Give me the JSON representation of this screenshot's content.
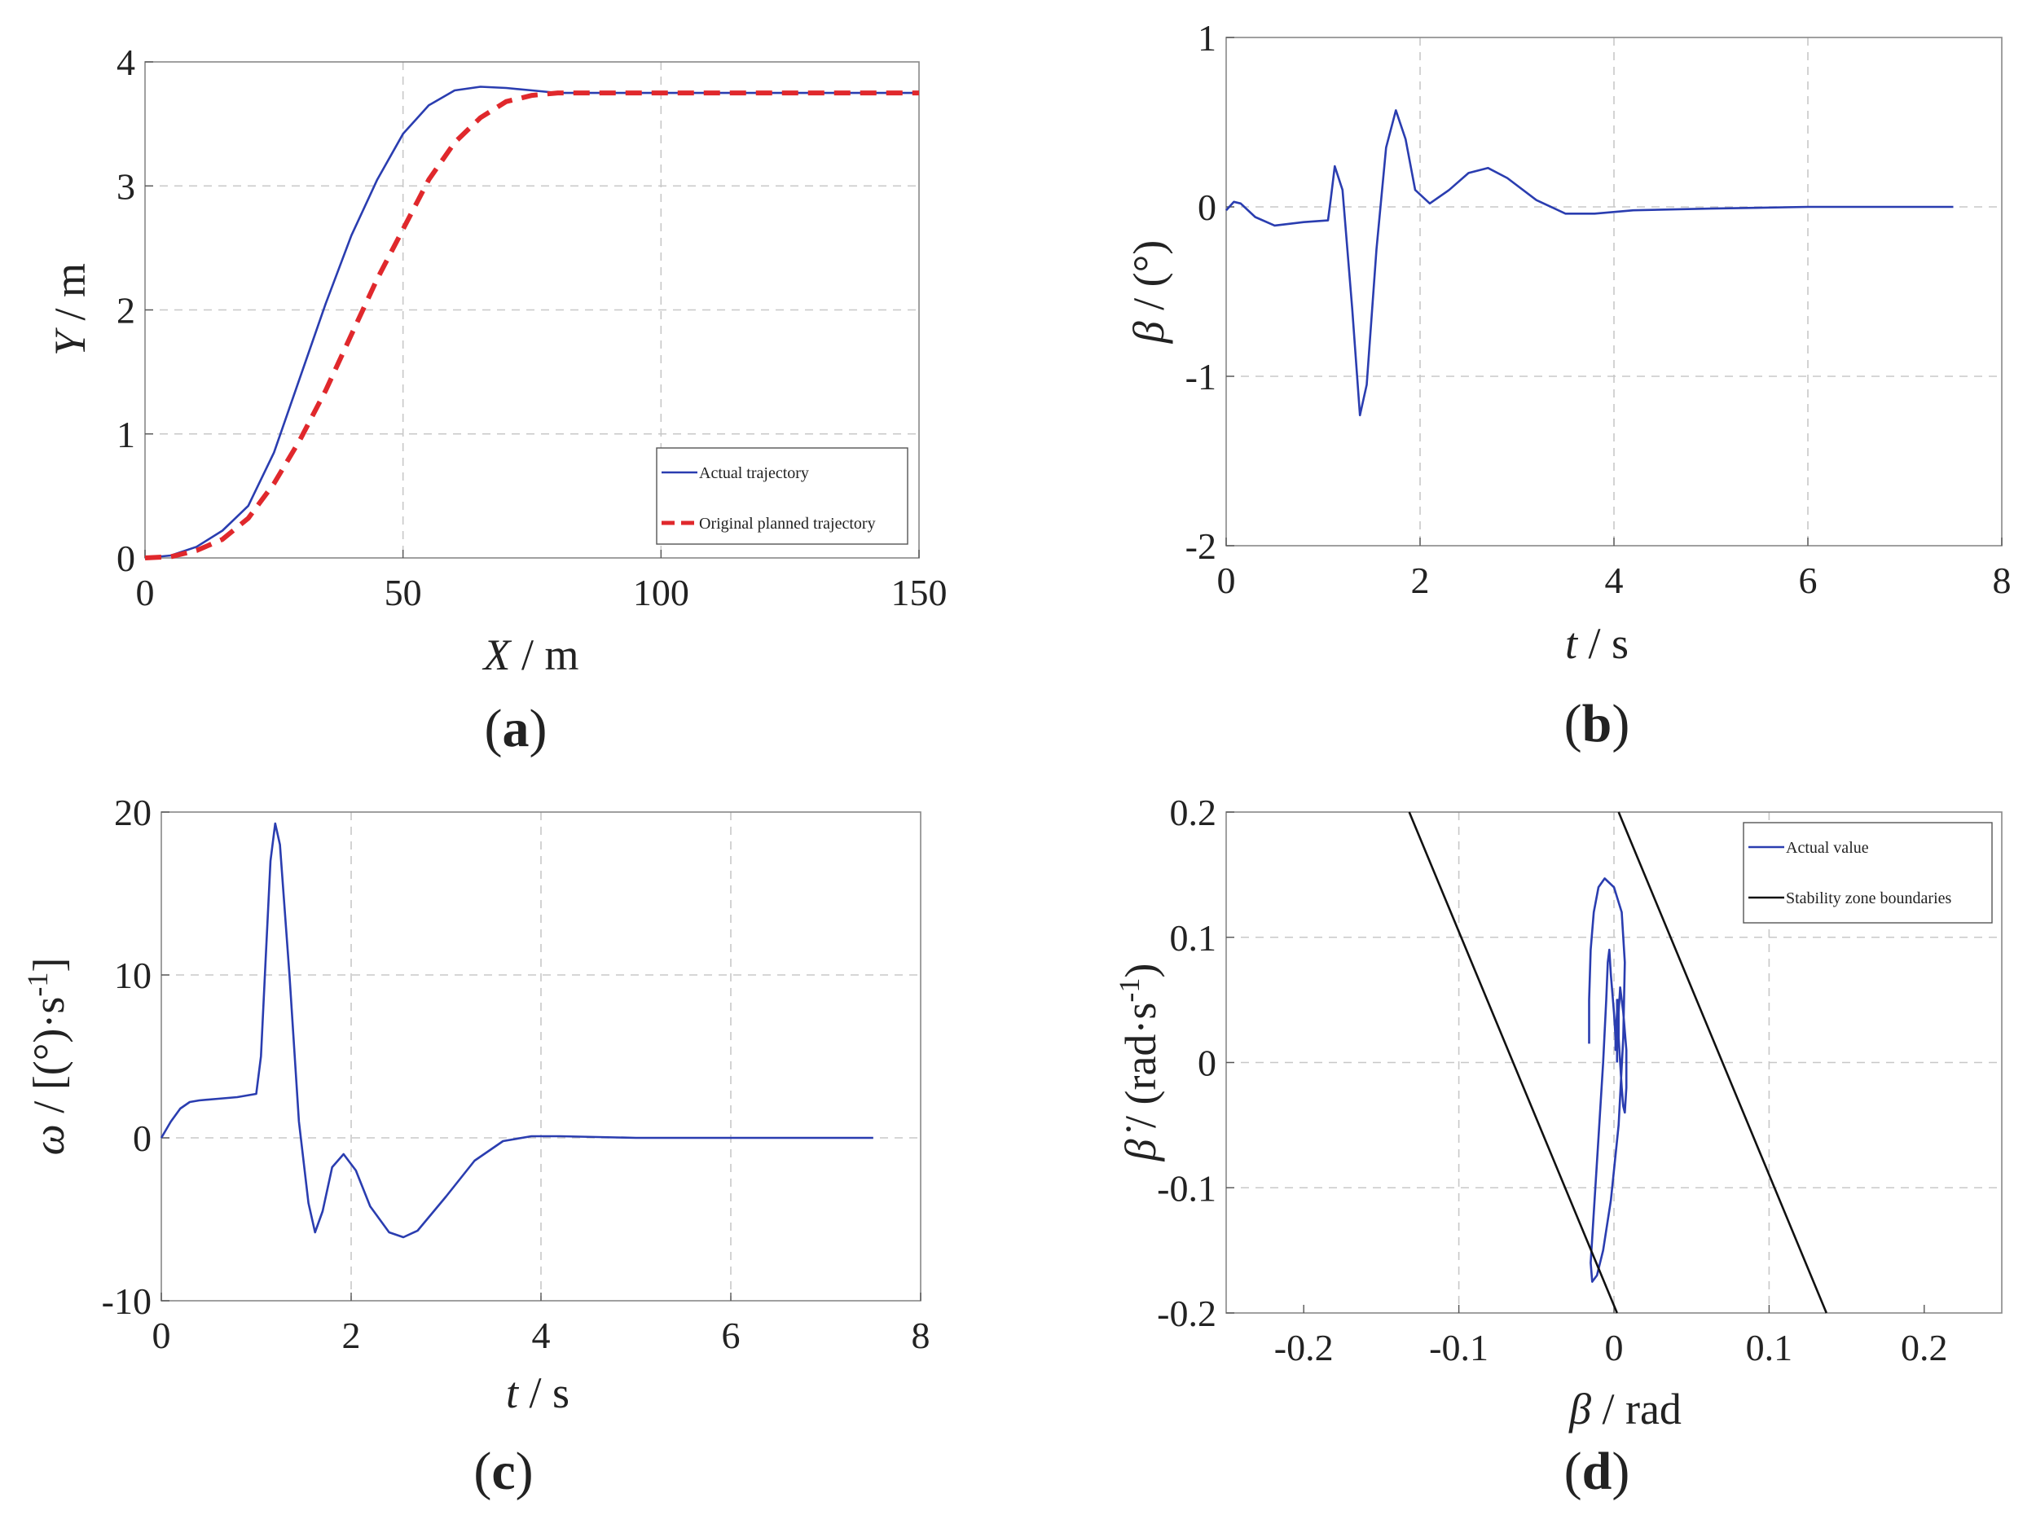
{
  "colors": {
    "blue": "#2a3db0",
    "red": "#e0282c",
    "black": "#111111"
  },
  "chart_data": [
    {
      "type": "line",
      "panel_label": "(a)",
      "xlabel": {
        "italic": "X",
        "rest": " / m"
      },
      "ylabel": {
        "italic": "Y",
        "rest": " / m"
      },
      "xlim": [
        0,
        150
      ],
      "ylim": [
        0,
        4
      ],
      "xticks": [
        0,
        50,
        100,
        150
      ],
      "xtick_labels": [
        "0",
        "50",
        "100",
        "150"
      ],
      "yticks": [
        0,
        1,
        2,
        3,
        4
      ],
      "ytick_labels": [
        "0",
        "1",
        "2",
        "3",
        "4"
      ],
      "grid": true,
      "legend": {
        "placement": "bottom-right"
      },
      "series": [
        {
          "name": "Actual trajectory",
          "style": "solid",
          "color": "blue",
          "x": [
            0,
            5,
            10,
            15,
            20,
            25,
            30,
            35,
            40,
            45,
            50,
            55,
            60,
            65,
            70,
            75,
            80,
            90,
            100,
            110,
            120,
            130,
            140,
            150
          ],
          "y": [
            0,
            0.02,
            0.09,
            0.22,
            0.42,
            0.85,
            1.45,
            2.05,
            2.6,
            3.05,
            3.42,
            3.65,
            3.77,
            3.8,
            3.79,
            3.77,
            3.75,
            3.75,
            3.75,
            3.75,
            3.75,
            3.75,
            3.75,
            3.75
          ]
        },
        {
          "name": "Original planned trajectory",
          "style": "dashed",
          "color": "red",
          "x": [
            0,
            5,
            10,
            15,
            20,
            25,
            30,
            35,
            40,
            45,
            50,
            55,
            60,
            65,
            70,
            75,
            80,
            85,
            90,
            100,
            110,
            120,
            130,
            140,
            150
          ],
          "y": [
            0,
            0.01,
            0.06,
            0.15,
            0.32,
            0.6,
            0.95,
            1.35,
            1.8,
            2.25,
            2.65,
            3.05,
            3.35,
            3.55,
            3.68,
            3.73,
            3.75,
            3.75,
            3.75,
            3.75,
            3.75,
            3.75,
            3.75,
            3.75,
            3.75
          ]
        }
      ]
    },
    {
      "type": "line",
      "panel_label": "(b)",
      "xlabel": {
        "italic": "t",
        "rest": " / s"
      },
      "ylabel": {
        "italic": "β",
        "rest": " / (°)"
      },
      "xlim": [
        0,
        8
      ],
      "ylim": [
        -2,
        1
      ],
      "xticks": [
        0,
        2,
        4,
        6,
        8
      ],
      "xtick_labels": [
        "0",
        "2",
        "4",
        "6",
        "8"
      ],
      "yticks": [
        -2,
        -1,
        0,
        1
      ],
      "ytick_labels": [
        "-2",
        "-1",
        "0",
        "1"
      ],
      "grid": true,
      "series": [
        {
          "name": "β",
          "style": "solid",
          "color": "blue",
          "x": [
            0,
            0.08,
            0.15,
            0.3,
            0.5,
            0.8,
            1.05,
            1.08,
            1.12,
            1.2,
            1.3,
            1.38,
            1.45,
            1.55,
            1.65,
            1.75,
            1.85,
            1.95,
            2.1,
            2.3,
            2.5,
            2.7,
            2.9,
            3.2,
            3.5,
            3.8,
            4.2,
            5,
            6,
            7.5
          ],
          "y": [
            -0.02,
            0.03,
            0.02,
            -0.06,
            -0.11,
            -0.09,
            -0.08,
            0.05,
            0.24,
            0.1,
            -0.6,
            -1.23,
            -1.05,
            -0.25,
            0.35,
            0.57,
            0.4,
            0.1,
            0.02,
            0.1,
            0.2,
            0.23,
            0.17,
            0.04,
            -0.04,
            -0.04,
            -0.02,
            -0.01,
            0,
            0
          ]
        }
      ]
    },
    {
      "type": "line",
      "panel_label": "(c)",
      "xlabel": {
        "italic": "t",
        "rest": " / s"
      },
      "ylabel": {
        "italic": "ω",
        "rest": " / [(°)·s",
        "sup": "-1",
        "tail": "]"
      },
      "xlim": [
        0,
        8
      ],
      "ylim": [
        -10,
        20
      ],
      "xticks": [
        0,
        2,
        4,
        6,
        8
      ],
      "xtick_labels": [
        "0",
        "2",
        "4",
        "6",
        "8"
      ],
      "yticks": [
        -10,
        0,
        10,
        20
      ],
      "ytick_labels": [
        "-10",
        "0",
        "10",
        "20"
      ],
      "grid": true,
      "series": [
        {
          "name": "ω",
          "style": "solid",
          "color": "blue",
          "x": [
            0,
            0.1,
            0.2,
            0.3,
            0.4,
            0.6,
            0.8,
            1.0,
            1.05,
            1.1,
            1.15,
            1.2,
            1.25,
            1.35,
            1.45,
            1.55,
            1.62,
            1.7,
            1.8,
            1.92,
            2.05,
            2.2,
            2.4,
            2.55,
            2.7,
            3.0,
            3.3,
            3.6,
            3.9,
            4.2,
            5,
            6,
            7.5
          ],
          "y": [
            0,
            1.0,
            1.8,
            2.2,
            2.3,
            2.4,
            2.5,
            2.7,
            5,
            11,
            17,
            19.3,
            18,
            10,
            1,
            -4,
            -5.8,
            -4.5,
            -1.8,
            -1,
            -2,
            -4.2,
            -5.8,
            -6.1,
            -5.7,
            -3.6,
            -1.4,
            -0.2,
            0.1,
            0.1,
            0,
            0,
            0
          ]
        }
      ]
    },
    {
      "type": "line",
      "panel_label": "(d)",
      "xlabel": {
        "italic": "β",
        "rest": " / rad"
      },
      "ylabel": {
        "italic": "β̇",
        "rest": " / (rad·s",
        "sup": "-1",
        "tail": ")"
      },
      "xlim": [
        -0.25,
        0.25
      ],
      "ylim": [
        -0.2,
        0.2
      ],
      "xticks": [
        -0.2,
        -0.1,
        0,
        0.1,
        0.2
      ],
      "xtick_labels": [
        "-0.2",
        "-0.1",
        "0",
        "0.1",
        "0.2"
      ],
      "yticks": [
        -0.2,
        -0.1,
        0,
        0.1,
        0.2
      ],
      "ytick_labels": [
        "-0.2",
        "-0.1",
        "0",
        "0.1",
        "0.2"
      ],
      "grid": true,
      "legend": {
        "placement": "top-right"
      },
      "series": [
        {
          "name": "Actual value",
          "style": "solid",
          "color": "blue",
          "x": [
            -0.016,
            -0.016,
            -0.015,
            -0.013,
            -0.01,
            -0.006,
            0,
            0.005,
            0.007,
            0.006,
            0.003,
            -0.002,
            -0.007,
            -0.011,
            -0.014,
            -0.015,
            -0.013,
            -0.01,
            -0.007,
            -0.005,
            -0.004,
            -0.003,
            -0.002,
            0,
            0.001,
            0.002,
            0.003,
            0.004,
            0.006,
            0.008,
            0.008,
            0.007,
            0.006,
            0.005,
            0.004,
            0.003,
            0.003,
            0.002,
            0.002,
            0.001,
            0.001,
            0.001,
            0.002,
            0.003,
            0.002,
            0.002
          ],
          "y": [
            0.015,
            0.05,
            0.09,
            0.12,
            0.14,
            0.147,
            0.14,
            0.12,
            0.08,
            0.02,
            -0.05,
            -0.11,
            -0.15,
            -0.17,
            -0.175,
            -0.16,
            -0.12,
            -0.06,
            0,
            0.05,
            0.08,
            0.09,
            0.07,
            0.04,
            0.02,
            0.02,
            0.04,
            0.06,
            0.04,
            0.01,
            -0.02,
            -0.04,
            -0.035,
            -0.02,
            0,
            0.02,
            0.04,
            0.05,
            0.03,
            0.01,
            0.01,
            0.02,
            0.04,
            0.05,
            0.02,
            0
          ]
        },
        {
          "name": "Stability zone boundaries",
          "style": "solid",
          "color": "black",
          "x": [
            -0.132,
            0.002
          ],
          "y": [
            0.2,
            -0.2
          ]
        },
        {
          "name": "Stability zone boundaries",
          "style": "solid",
          "color": "black",
          "legend": false,
          "x": [
            0.003,
            0.137
          ],
          "y": [
            0.2,
            -0.2
          ]
        }
      ]
    }
  ]
}
